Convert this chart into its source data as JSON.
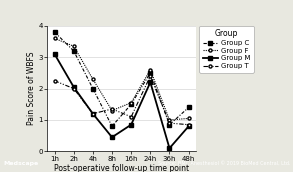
{
  "x_labels": [
    "1h",
    "2h",
    "4h",
    "8h",
    "16h",
    "24h",
    "36h",
    "48h"
  ],
  "x_values": [
    0,
    1,
    2,
    3,
    4,
    5,
    6,
    7
  ],
  "group_C": [
    3.8,
    3.2,
    2.0,
    0.8,
    1.5,
    2.5,
    0.85,
    1.4
  ],
  "group_F": [
    3.6,
    3.35,
    2.3,
    1.3,
    1.55,
    2.6,
    1.0,
    1.05
  ],
  "group_M": [
    3.1,
    2.05,
    1.2,
    0.45,
    0.85,
    2.2,
    0.1,
    0.8
  ],
  "group_T": [
    2.25,
    2.0,
    1.2,
    1.35,
    1.1,
    2.4,
    0.9,
    0.85
  ],
  "ylim": [
    0,
    4
  ],
  "yticks": [
    0,
    1,
    2,
    3,
    4
  ],
  "ylabel": "Pain Score of WBFS",
  "xlabel": "Post-operative follow-up time point",
  "legend_title": "Group",
  "legend_labels": [
    "Group C",
    "Group F",
    "Group M",
    "Group T"
  ],
  "fig_bg": "#e8e8e0",
  "plot_bg": "#ffffff",
  "header_color": "#2e6fa3",
  "footer_color": "#2e6fa3",
  "axis_fontsize": 5.5,
  "tick_fontsize": 5.0,
  "legend_fontsize": 5.0,
  "footer_left": "Medscape",
  "footer_right": "Source: BMC Anesthesiol © 2019 BioMed Central, Ltd."
}
